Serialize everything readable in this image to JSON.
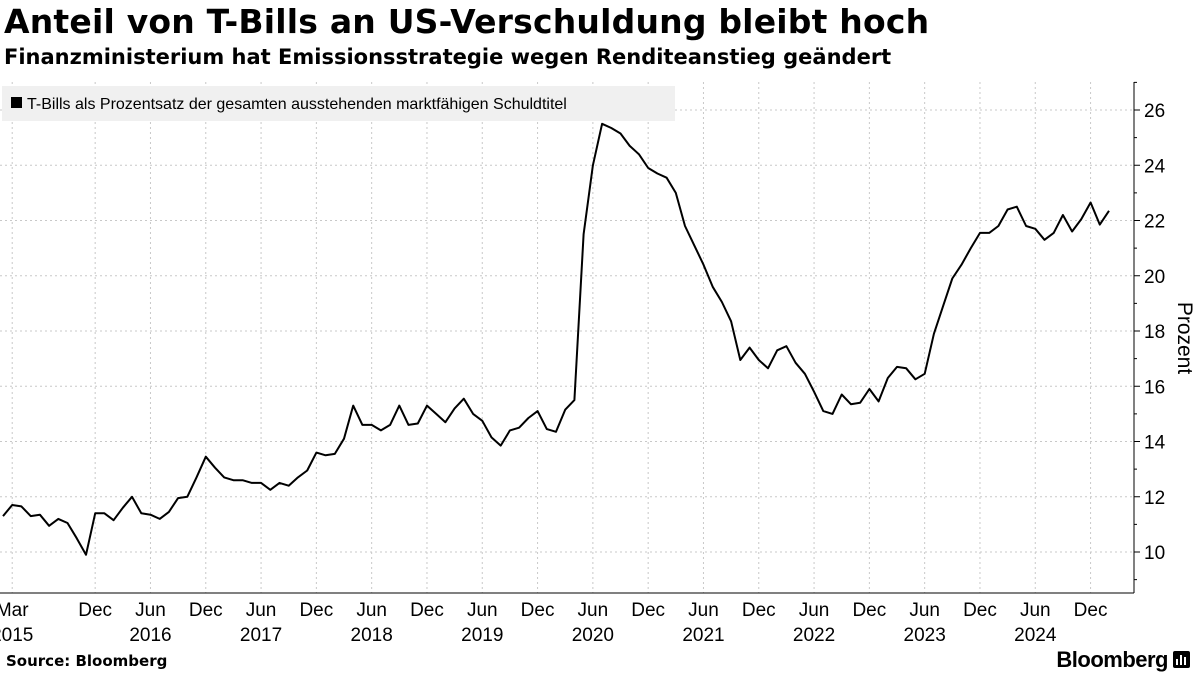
{
  "header": {
    "title": "Anteil von T-Bills an US-Verschuldung bleibt hoch",
    "subtitle": "Finanzministerium hat Emissionsstrategie wegen Renditeanstieg geändert"
  },
  "footer": {
    "source": "Source: Bloomberg",
    "brand": "Bloomberg",
    "brand_icon": "bar-chart-icon"
  },
  "chart_data": {
    "type": "line",
    "title": "Anteil von T-Bills an US-Verschuldung bleibt hoch",
    "subtitle": "Finanzministerium hat Emissionsstrategie wegen Renditeanstieg geändert",
    "ylabel": "Prozent",
    "ylim": [
      8.5,
      27
    ],
    "yticks": [
      10,
      12,
      14,
      16,
      18,
      20,
      22,
      24,
      26
    ],
    "x_start": "2015-02",
    "x_end": "2025-02",
    "grid": true,
    "legend_position": "top-left",
    "line_color": "#000000",
    "month_ticks": [
      {
        "date": "2015-03",
        "label": "Mar"
      },
      {
        "date": "2015-12",
        "label": "Dec"
      },
      {
        "date": "2016-06",
        "label": "Jun"
      },
      {
        "date": "2016-12",
        "label": "Dec"
      },
      {
        "date": "2017-06",
        "label": "Jun"
      },
      {
        "date": "2017-12",
        "label": "Dec"
      },
      {
        "date": "2018-06",
        "label": "Jun"
      },
      {
        "date": "2018-12",
        "label": "Dec"
      },
      {
        "date": "2019-06",
        "label": "Jun"
      },
      {
        "date": "2019-12",
        "label": "Dec"
      },
      {
        "date": "2020-06",
        "label": "Jun"
      },
      {
        "date": "2020-12",
        "label": "Dec"
      },
      {
        "date": "2021-06",
        "label": "Jun"
      },
      {
        "date": "2021-12",
        "label": "Dec"
      },
      {
        "date": "2022-06",
        "label": "Jun"
      },
      {
        "date": "2022-12",
        "label": "Dec"
      },
      {
        "date": "2023-06",
        "label": "Jun"
      },
      {
        "date": "2023-12",
        "label": "Dec"
      },
      {
        "date": "2024-06",
        "label": "Jun"
      },
      {
        "date": "2024-12",
        "label": "Dec"
      }
    ],
    "year_labels": [
      {
        "date": "2015-03",
        "label": "2015"
      },
      {
        "date": "2016-06",
        "label": "2016"
      },
      {
        "date": "2017-06",
        "label": "2017"
      },
      {
        "date": "2018-06",
        "label": "2018"
      },
      {
        "date": "2019-06",
        "label": "2019"
      },
      {
        "date": "2020-06",
        "label": "2020"
      },
      {
        "date": "2021-06",
        "label": "2021"
      },
      {
        "date": "2022-06",
        "label": "2022"
      },
      {
        "date": "2023-06",
        "label": "2023"
      },
      {
        "date": "2024-06",
        "label": "2024"
      }
    ],
    "series": [
      {
        "name": "T-Bills als Prozentsatz der gesamten ausstehenden marktfähigen Schuldtitel",
        "points": [
          [
            "2015-02",
            11.3
          ],
          [
            "2015-03",
            11.7
          ],
          [
            "2015-04",
            11.65
          ],
          [
            "2015-05",
            11.3
          ],
          [
            "2015-06",
            11.35
          ],
          [
            "2015-07",
            10.95
          ],
          [
            "2015-08",
            11.2
          ],
          [
            "2015-09",
            11.05
          ],
          [
            "2015-10",
            10.5
          ],
          [
            "2015-11",
            9.9
          ],
          [
            "2015-12",
            11.4
          ],
          [
            "2016-01",
            11.4
          ],
          [
            "2016-02",
            11.15
          ],
          [
            "2016-03",
            11.6
          ],
          [
            "2016-04",
            12.0
          ],
          [
            "2016-05",
            11.4
          ],
          [
            "2016-06",
            11.35
          ],
          [
            "2016-07",
            11.2
          ],
          [
            "2016-08",
            11.45
          ],
          [
            "2016-09",
            11.95
          ],
          [
            "2016-10",
            12.0
          ],
          [
            "2016-11",
            12.7
          ],
          [
            "2016-12",
            13.45
          ],
          [
            "2017-01",
            13.05
          ],
          [
            "2017-02",
            12.7
          ],
          [
            "2017-03",
            12.6
          ],
          [
            "2017-04",
            12.6
          ],
          [
            "2017-05",
            12.5
          ],
          [
            "2017-06",
            12.5
          ],
          [
            "2017-07",
            12.25
          ],
          [
            "2017-08",
            12.5
          ],
          [
            "2017-09",
            12.4
          ],
          [
            "2017-10",
            12.7
          ],
          [
            "2017-11",
            12.95
          ],
          [
            "2017-12",
            13.6
          ],
          [
            "2018-01",
            13.5
          ],
          [
            "2018-02",
            13.55
          ],
          [
            "2018-03",
            14.1
          ],
          [
            "2018-04",
            15.3
          ],
          [
            "2018-05",
            14.6
          ],
          [
            "2018-06",
            14.6
          ],
          [
            "2018-07",
            14.4
          ],
          [
            "2018-08",
            14.6
          ],
          [
            "2018-09",
            15.3
          ],
          [
            "2018-10",
            14.6
          ],
          [
            "2018-11",
            14.65
          ],
          [
            "2018-12",
            15.3
          ],
          [
            "2019-01",
            15.0
          ],
          [
            "2019-02",
            14.7
          ],
          [
            "2019-03",
            15.2
          ],
          [
            "2019-04",
            15.55
          ],
          [
            "2019-05",
            15.0
          ],
          [
            "2019-06",
            14.75
          ],
          [
            "2019-07",
            14.15
          ],
          [
            "2019-08",
            13.85
          ],
          [
            "2019-09",
            14.4
          ],
          [
            "2019-10",
            14.5
          ],
          [
            "2019-11",
            14.85
          ],
          [
            "2019-12",
            15.1
          ],
          [
            "2020-01",
            14.45
          ],
          [
            "2020-02",
            14.35
          ],
          [
            "2020-03",
            15.15
          ],
          [
            "2020-04",
            15.5
          ],
          [
            "2020-05",
            21.5
          ],
          [
            "2020-06",
            24.0
          ],
          [
            "2020-07",
            25.5
          ],
          [
            "2020-08",
            25.35
          ],
          [
            "2020-09",
            25.15
          ],
          [
            "2020-10",
            24.7
          ],
          [
            "2020-11",
            24.4
          ],
          [
            "2020-12",
            23.9
          ],
          [
            "2021-01",
            23.7
          ],
          [
            "2021-02",
            23.55
          ],
          [
            "2021-03",
            23.0
          ],
          [
            "2021-04",
            21.8
          ],
          [
            "2021-05",
            21.1
          ],
          [
            "2021-06",
            20.4
          ],
          [
            "2021-07",
            19.6
          ],
          [
            "2021-08",
            19.05
          ],
          [
            "2021-09",
            18.35
          ],
          [
            "2021-10",
            16.95
          ],
          [
            "2021-11",
            17.4
          ],
          [
            "2021-12",
            16.95
          ],
          [
            "2022-01",
            16.65
          ],
          [
            "2022-02",
            17.3
          ],
          [
            "2022-03",
            17.45
          ],
          [
            "2022-04",
            16.85
          ],
          [
            "2022-05",
            16.45
          ],
          [
            "2022-06",
            15.8
          ],
          [
            "2022-07",
            15.1
          ],
          [
            "2022-08",
            15.0
          ],
          [
            "2022-09",
            15.7
          ],
          [
            "2022-10",
            15.35
          ],
          [
            "2022-11",
            15.4
          ],
          [
            "2022-12",
            15.9
          ],
          [
            "2023-01",
            15.45
          ],
          [
            "2023-02",
            16.3
          ],
          [
            "2023-03",
            16.7
          ],
          [
            "2023-04",
            16.65
          ],
          [
            "2023-05",
            16.25
          ],
          [
            "2023-06",
            16.45
          ],
          [
            "2023-07",
            17.9
          ],
          [
            "2023-08",
            18.9
          ],
          [
            "2023-09",
            19.9
          ],
          [
            "2023-10",
            20.4
          ],
          [
            "2023-11",
            21.0
          ],
          [
            "2023-12",
            21.55
          ],
          [
            "2024-01",
            21.55
          ],
          [
            "2024-02",
            21.8
          ],
          [
            "2024-03",
            22.4
          ],
          [
            "2024-04",
            22.5
          ],
          [
            "2024-05",
            21.8
          ],
          [
            "2024-06",
            21.7
          ],
          [
            "2024-07",
            21.3
          ],
          [
            "2024-08",
            21.55
          ],
          [
            "2024-09",
            22.2
          ],
          [
            "2024-10",
            21.6
          ],
          [
            "2024-11",
            22.05
          ],
          [
            "2024-12",
            22.65
          ],
          [
            "2025-01",
            21.85
          ],
          [
            "2025-02",
            22.35
          ]
        ]
      }
    ]
  }
}
